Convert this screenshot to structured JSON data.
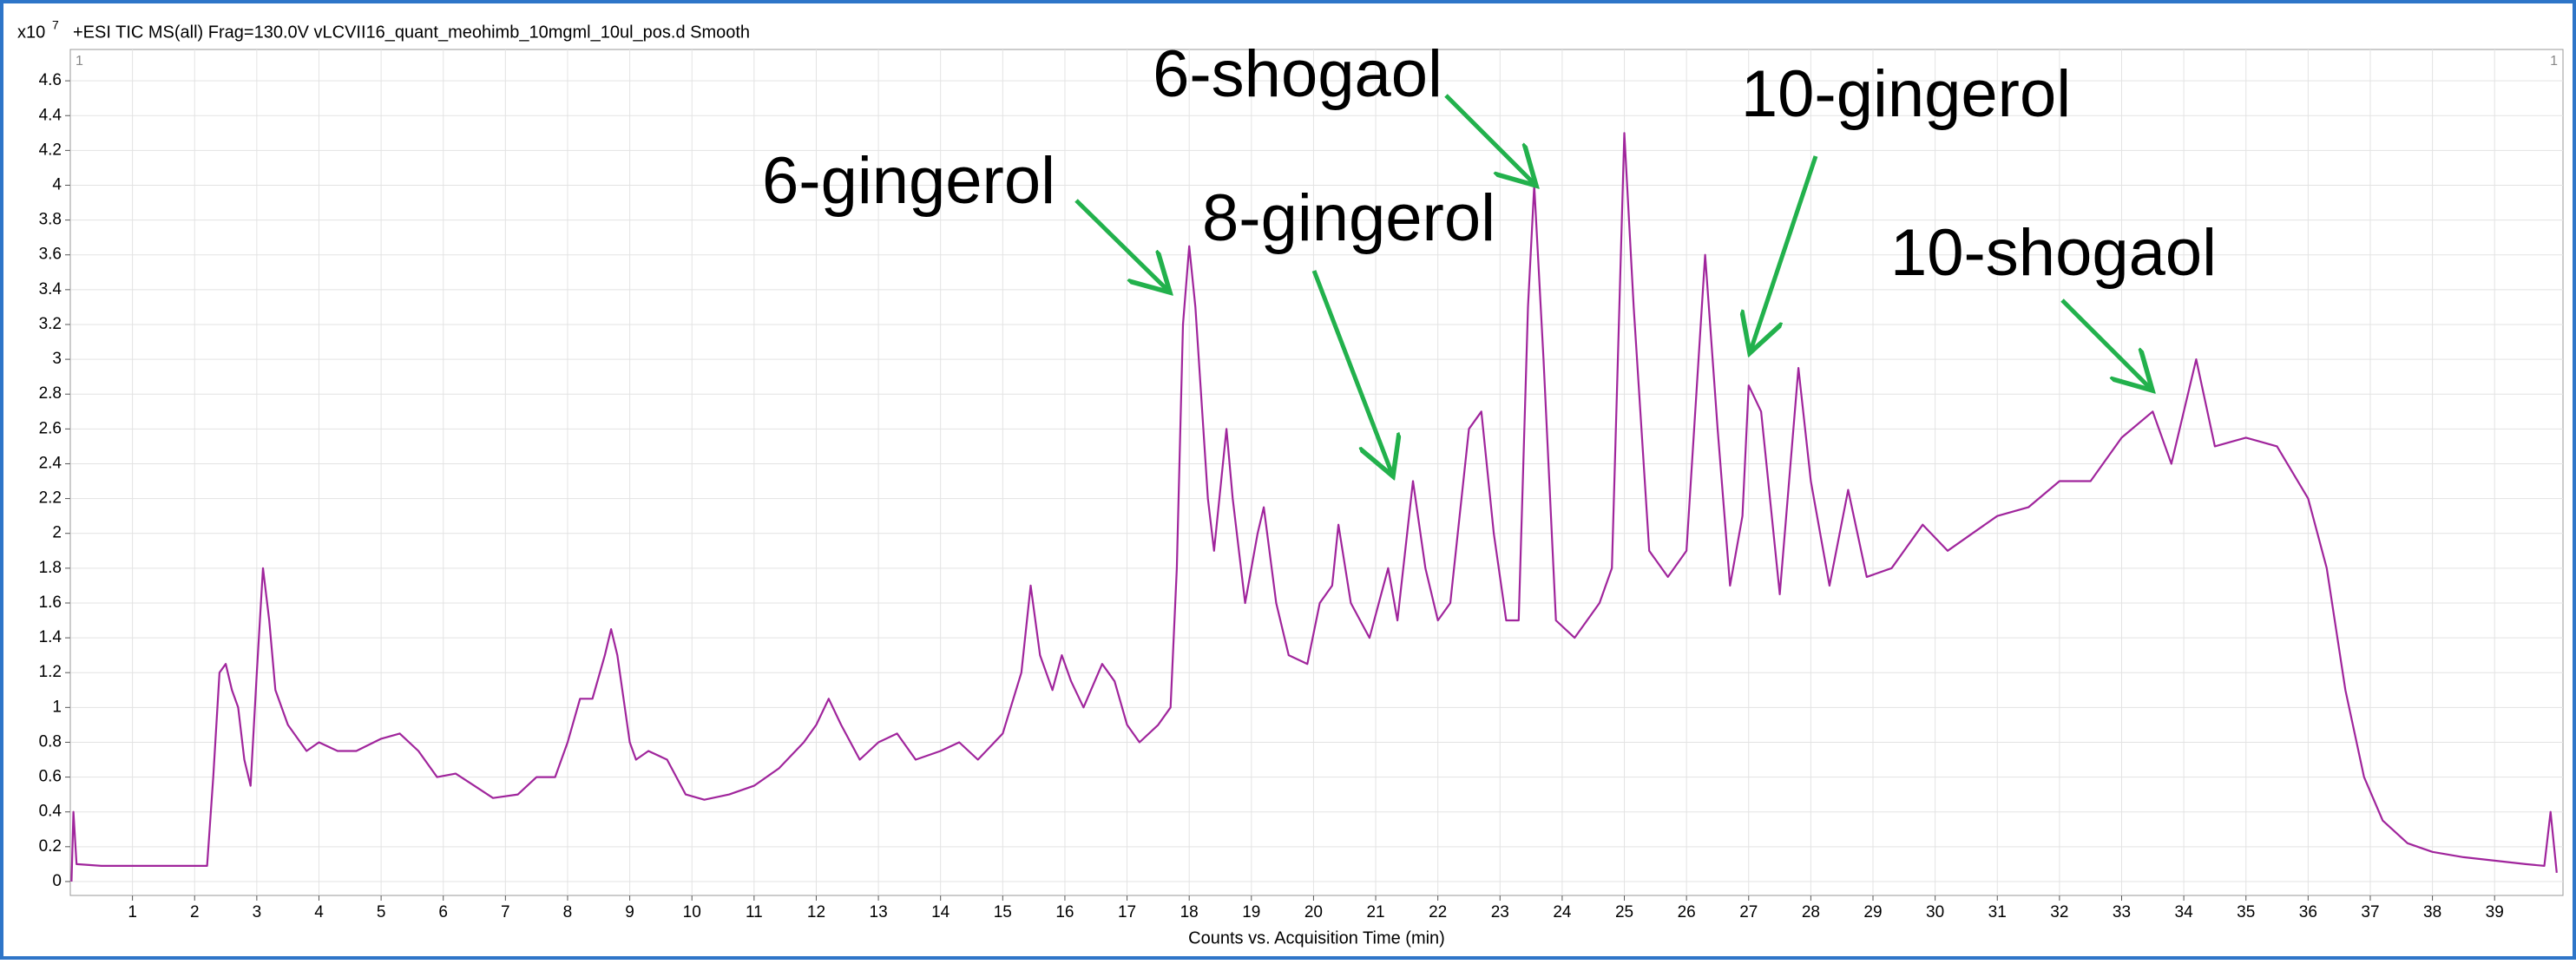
{
  "chart_data": {
    "type": "line",
    "title": "+ESI TIC MS(all) Frag=130.0V vLCVII16_quant_meohimb_10mgml_10ul_pos.d  Smooth",
    "y_scale_base": "x10",
    "y_scale_exponent": "7",
    "panel_label": "1",
    "x_label": "Counts vs. Acquisition Time (min)",
    "color": "#a0259c",
    "grid": true,
    "xlim": [
      0,
      40.1
    ],
    "ylim": [
      -0.08,
      4.78
    ],
    "xticks": [
      1,
      2,
      3,
      4,
      5,
      6,
      7,
      8,
      9,
      10,
      11,
      12,
      13,
      14,
      15,
      16,
      17,
      18,
      19,
      20,
      21,
      22,
      23,
      24,
      25,
      26,
      27,
      28,
      29,
      30,
      31,
      32,
      33,
      34,
      35,
      36,
      37,
      38,
      39
    ],
    "yticks": [
      0,
      0.2,
      0.4,
      0.6,
      0.8,
      1,
      1.2,
      1.4,
      1.6,
      1.8,
      2,
      2.2,
      2.4,
      2.6,
      2.8,
      3,
      3.2,
      3.4,
      3.6,
      3.8,
      4,
      4.2,
      4.4,
      4.6
    ],
    "x": [
      0.02,
      0.05,
      0.1,
      0.5,
      2.1,
      2.2,
      2.3,
      2.4,
      2.5,
      2.6,
      2.7,
      2.8,
      2.9,
      3.0,
      3.1,
      3.2,
      3.3,
      3.5,
      3.8,
      4.0,
      4.3,
      4.6,
      5.0,
      5.3,
      5.6,
      5.9,
      6.2,
      6.5,
      6.8,
      7.2,
      7.5,
      7.8,
      8.0,
      8.2,
      8.4,
      8.6,
      8.7,
      8.8,
      9.0,
      9.1,
      9.3,
      9.6,
      9.9,
      10.2,
      10.6,
      11.0,
      11.4,
      11.8,
      12.0,
      12.2,
      12.4,
      12.7,
      13.0,
      13.3,
      13.6,
      14.0,
      14.3,
      14.6,
      15.0,
      15.3,
      15.45,
      15.6,
      15.8,
      15.95,
      16.1,
      16.3,
      16.6,
      16.8,
      17.0,
      17.2,
      17.5,
      17.7,
      17.8,
      17.9,
      18.0,
      18.1,
      18.3,
      18.4,
      18.6,
      18.7,
      18.9,
      19.1,
      19.2,
      19.4,
      19.6,
      19.9,
      20.1,
      20.3,
      20.4,
      20.6,
      20.9,
      21.2,
      21.35,
      21.6,
      21.8,
      22.0,
      22.2,
      22.5,
      22.7,
      22.9,
      23.1,
      23.3,
      23.45,
      23.55,
      23.7,
      23.9,
      24.2,
      24.6,
      24.8,
      25.0,
      25.15,
      25.4,
      25.7,
      26.0,
      26.3,
      26.5,
      26.7,
      26.9,
      27.0,
      27.2,
      27.5,
      27.8,
      28.0,
      28.3,
      28.6,
      28.9,
      29.3,
      29.8,
      30.2,
      30.6,
      31.0,
      31.5,
      32.0,
      32.5,
      33.0,
      33.5,
      33.8,
      34.2,
      34.5,
      35.0,
      35.5,
      36.0,
      36.3,
      36.6,
      36.9,
      37.2,
      37.6,
      38.0,
      38.5,
      39.0,
      39.5,
      39.8,
      39.9,
      40.0
    ],
    "values": [
      0.0,
      0.4,
      0.1,
      0.09,
      0.09,
      0.09,
      0.6,
      1.2,
      1.25,
      1.1,
      1.0,
      0.7,
      0.55,
      1.2,
      1.8,
      1.5,
      1.1,
      0.9,
      0.75,
      0.8,
      0.75,
      0.75,
      0.82,
      0.85,
      0.75,
      0.6,
      0.62,
      0.55,
      0.48,
      0.5,
      0.6,
      0.6,
      0.8,
      1.05,
      1.05,
      1.3,
      1.45,
      1.3,
      0.8,
      0.7,
      0.75,
      0.7,
      0.5,
      0.47,
      0.5,
      0.55,
      0.65,
      0.8,
      0.9,
      1.05,
      0.9,
      0.7,
      0.8,
      0.85,
      0.7,
      0.75,
      0.8,
      0.7,
      0.85,
      1.2,
      1.7,
      1.3,
      1.1,
      1.3,
      1.15,
      1.0,
      1.25,
      1.15,
      0.9,
      0.8,
      0.9,
      1.0,
      1.8,
      3.2,
      3.65,
      3.3,
      2.2,
      1.9,
      2.6,
      2.2,
      1.6,
      2.0,
      2.15,
      1.6,
      1.3,
      1.25,
      1.6,
      1.7,
      2.05,
      1.6,
      1.4,
      1.8,
      1.5,
      2.3,
      1.8,
      1.5,
      1.6,
      2.6,
      2.7,
      2.0,
      1.5,
      1.5,
      3.3,
      4.0,
      3.0,
      1.5,
      1.4,
      1.6,
      1.8,
      4.3,
      3.3,
      1.9,
      1.75,
      1.9,
      3.6,
      2.6,
      1.7,
      2.1,
      2.85,
      2.7,
      1.65,
      2.95,
      2.3,
      1.7,
      2.25,
      1.75,
      1.8,
      2.05,
      1.9,
      2.0,
      2.1,
      2.15,
      2.3,
      2.3,
      2.55,
      2.7,
      2.4,
      3.0,
      2.5,
      2.55,
      2.5,
      2.2,
      1.8,
      1.1,
      0.6,
      0.35,
      0.22,
      0.17,
      0.14,
      0.12,
      0.1,
      0.09,
      0.4,
      0.05
    ],
    "annotations": [
      "6-gingerol",
      "8-gingerol",
      "6-shogaol",
      "10-gingerol",
      "10-shogaol"
    ]
  }
}
